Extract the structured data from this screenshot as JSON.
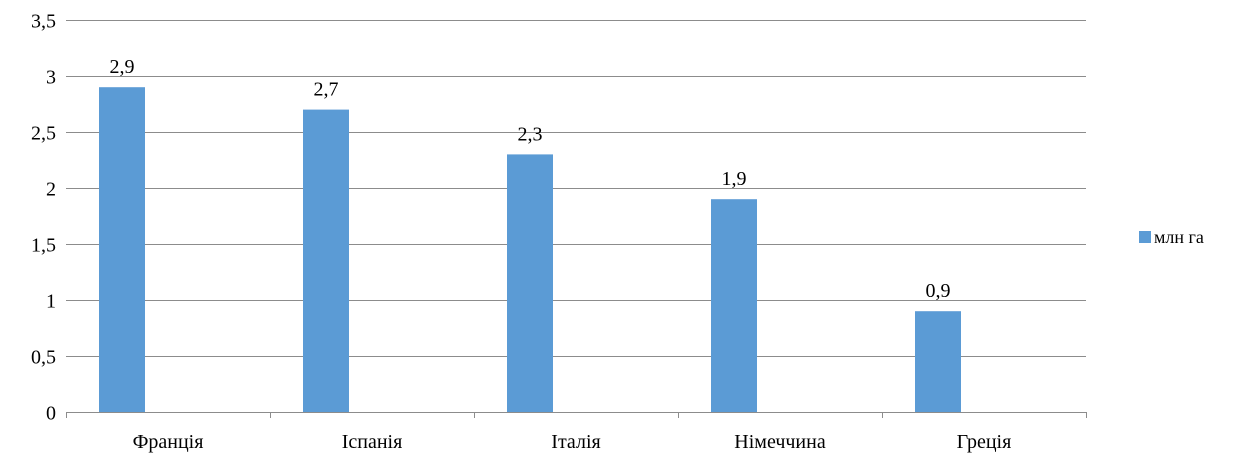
{
  "chart_data": {
    "type": "bar",
    "categories": [
      "Франція",
      "Іспанія",
      "Італія",
      "Німеччина",
      "Греція"
    ],
    "series": [
      {
        "name": "млн га",
        "values": [
          2.9,
          2.7,
          2.3,
          1.9,
          0.9
        ],
        "value_labels": [
          "2,9",
          "2,7",
          "2,3",
          "1,9",
          "0,9"
        ],
        "color": "#5b9bd5"
      }
    ],
    "ylim": [
      0,
      3.5
    ],
    "y_ticks": [
      0,
      0.5,
      1,
      1.5,
      2,
      2.5,
      3,
      3.5
    ],
    "y_tick_labels": [
      "0",
      "0,5",
      "1",
      "1,5",
      "2",
      "2,5",
      "3",
      "3,5"
    ],
    "grid": true,
    "legend": "right",
    "title": "",
    "xlabel": "",
    "ylabel": ""
  }
}
